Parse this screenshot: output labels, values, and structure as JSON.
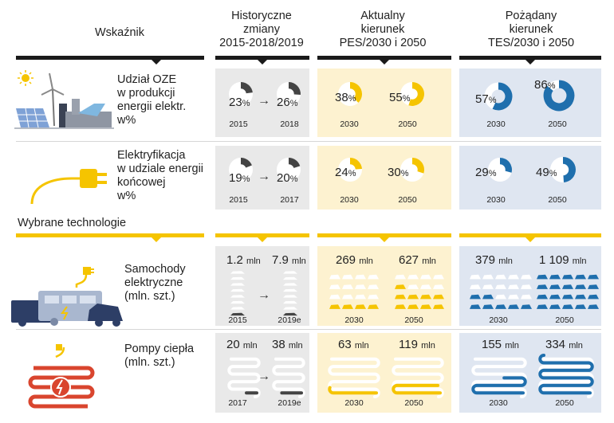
{
  "headers": {
    "indicator": "Wskaźnik",
    "historical": "Historyczne\nzmiany\n2015-2018/2019",
    "pes": "Aktualny\nkierunek\nPES/2030 i 2050",
    "tes": "Pożądany\nkierunek\nTES/2030 i 2050"
  },
  "section_label": "Wybrane technologie",
  "rows": [
    {
      "label": "Udział OZE\nw produkcji\nenergii elektr.\nw%",
      "icon": "renewables-icon",
      "hist": [
        {
          "v": "23",
          "u": "%",
          "yr": "2015",
          "pct": 23
        },
        {
          "v": "26",
          "u": "%",
          "yr": "2018",
          "pct": 26
        }
      ],
      "pes": [
        {
          "v": "38",
          "u": "%",
          "yr": "2030",
          "pct": 38
        },
        {
          "v": "55",
          "u": "%",
          "yr": "2050",
          "pct": 55
        }
      ],
      "tes": [
        {
          "v": "57",
          "u": "%",
          "yr": "2030",
          "pct": 57
        },
        {
          "v": "86",
          "u": "%",
          "yr": "2050",
          "pct": 86
        }
      ]
    },
    {
      "label": "Elektryfikacja\nw udziale energii\nkońcowej\nw%",
      "icon": "plug-icon",
      "hist": [
        {
          "v": "19",
          "u": "%",
          "yr": "2015",
          "pct": 19
        },
        {
          "v": "20",
          "u": "%",
          "yr": "2017",
          "pct": 20
        }
      ],
      "pes": [
        {
          "v": "24",
          "u": "%",
          "yr": "2030",
          "pct": 24
        },
        {
          "v": "30",
          "u": "%",
          "yr": "2050",
          "pct": 30
        }
      ],
      "tes": [
        {
          "v": "29",
          "u": "%",
          "yr": "2030",
          "pct": 29
        },
        {
          "v": "49",
          "u": "%",
          "yr": "2050",
          "pct": 49
        }
      ]
    },
    {
      "label": "Samochody\nelektryczne\n(mln. szt.)",
      "icon": "electric-car-icon",
      "hist": [
        {
          "v": "1.2",
          "u": "mln",
          "yr": "2015",
          "val": 1.2
        },
        {
          "v": "7.9",
          "u": "mln",
          "yr": "2019e",
          "val": 7.9
        }
      ],
      "pes": [
        {
          "v": "269",
          "u": "mln",
          "yr": "2030",
          "val": 269
        },
        {
          "v": "627",
          "u": "mln",
          "yr": "2050",
          "val": 627
        }
      ],
      "tes": [
        {
          "v": "379",
          "u": "mln",
          "yr": "2030",
          "val": 379
        },
        {
          "v": "1 109",
          "u": "mln",
          "yr": "2050",
          "val": 1109
        }
      ]
    },
    {
      "label": "Pompy ciepła\n(mln. szt.)",
      "icon": "heat-pump-icon",
      "hist": [
        {
          "v": "20",
          "u": "mln",
          "yr": "2017",
          "val": 20
        },
        {
          "v": "38",
          "u": "mln",
          "yr": "2019e",
          "val": 38
        }
      ],
      "pes": [
        {
          "v": "63",
          "u": "mln",
          "yr": "2030",
          "val": 63
        },
        {
          "v": "119",
          "u": "mln",
          "yr": "2050",
          "val": 119
        }
      ],
      "tes": [
        {
          "v": "155",
          "u": "mln",
          "yr": "2030",
          "val": 155
        },
        {
          "v": "334",
          "u": "mln",
          "yr": "2050",
          "val": 334
        }
      ]
    }
  ],
  "colors": {
    "hist": "#444444",
    "pes": "#f5c400",
    "tes": "#1f6fad",
    "hist_bg": "#e9e9e9",
    "pes_bg": "#fdf2d0",
    "tes_bg": "#dfe6f1"
  },
  "chart_data": {
    "type": "table",
    "columns": [
      "Wskaźnik",
      "Historyczne zmiany 2015-2018/2019",
      "Aktualny kierunek PES/2030 i 2050",
      "Pożądany kierunek TES/2030 i 2050"
    ],
    "rows": [
      {
        "indicator": "Udział OZE w produkcji energii elektr. w%",
        "historical": {
          "2015": 23,
          "2018": 26
        },
        "PES": {
          "2030": 38,
          "2050": 55
        },
        "TES": {
          "2030": 57,
          "2050": 86
        }
      },
      {
        "indicator": "Elektryfikacja w udziale energii końcowej w%",
        "historical": {
          "2015": 19,
          "2017": 20
        },
        "PES": {
          "2030": 24,
          "2050": 30
        },
        "TES": {
          "2030": 29,
          "2050": 49
        }
      },
      {
        "indicator": "Samochody elektryczne (mln. szt.)",
        "historical": {
          "2015": 1.2,
          "2019e": 7.9
        },
        "PES": {
          "2030": 269,
          "2050": 627
        },
        "TES": {
          "2030": 379,
          "2050": 1109
        }
      },
      {
        "indicator": "Pompy ciepła (mln. szt.)",
        "historical": {
          "2017": 20,
          "2019e": 38
        },
        "PES": {
          "2030": 63,
          "2050": 119
        },
        "TES": {
          "2030": 155,
          "2050": 334
        }
      }
    ]
  }
}
